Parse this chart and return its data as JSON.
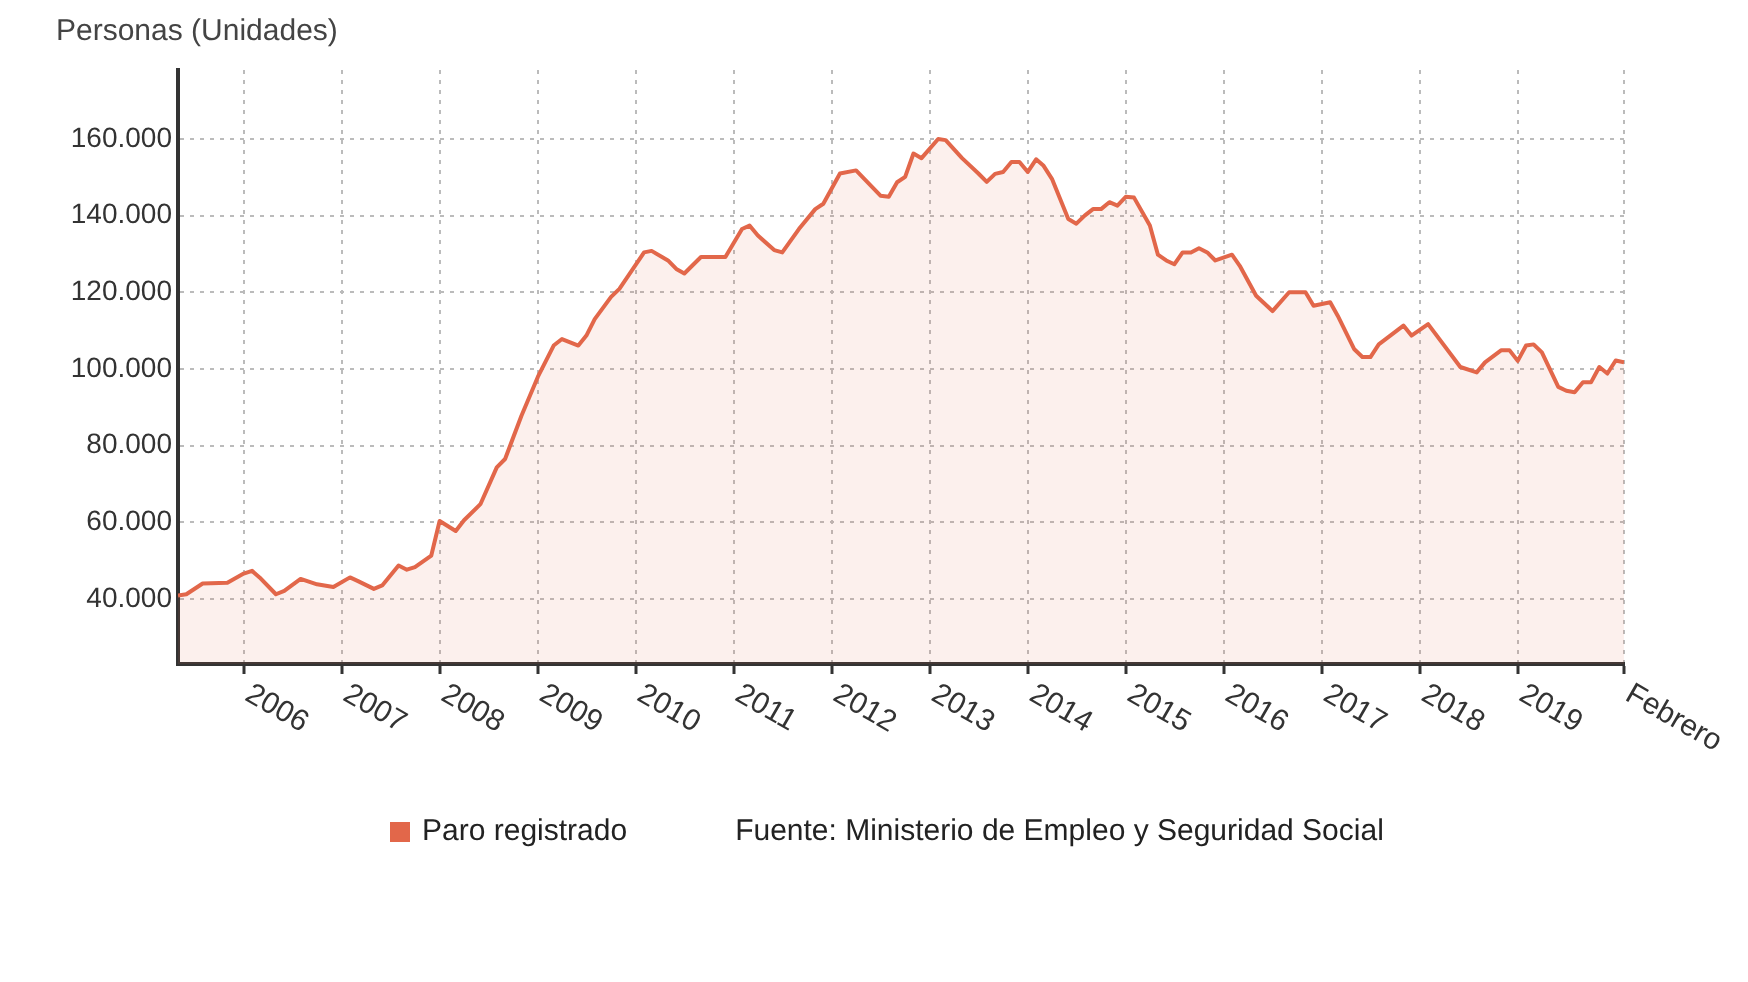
{
  "chart_data": {
    "type": "area",
    "ylabel": "Personas (Unidades)",
    "x": [
      "2005-05",
      "2005-06",
      "2005-08",
      "2005-11",
      "2006-01",
      "2006-02",
      "2006-03",
      "2006-05",
      "2006-06",
      "2006-08",
      "2006-10",
      "2006-12",
      "2007-02",
      "2007-03",
      "2007-05",
      "2007-06",
      "2007-08",
      "2007-09",
      "2007-10",
      "2007-12",
      "2008-01",
      "2008-03",
      "2008-04",
      "2008-06",
      "2008-08",
      "2008-09",
      "2008-11",
      "2009-01",
      "2009-03",
      "2009-04",
      "2009-06",
      "2009-07",
      "2009-08",
      "2009-10",
      "2009-11",
      "2010-02",
      "2010-03",
      "2010-05",
      "2010-06",
      "2010-07",
      "2010-09",
      "2010-12",
      "2011-02",
      "2011-03",
      "2011-04",
      "2011-06",
      "2011-07",
      "2011-09",
      "2011-11",
      "2011-12",
      "2012-02",
      "2012-04",
      "2012-07",
      "2012-08",
      "2012-09",
      "2012-10",
      "2012-11",
      "2012-12",
      "2013-02",
      "2013-03",
      "2013-05",
      "2013-07",
      "2013-08",
      "2013-09",
      "2013-10",
      "2013-11",
      "2013-12",
      "2014-01",
      "2014-02",
      "2014-03",
      "2014-04",
      "2014-06",
      "2014-07",
      "2014-08",
      "2014-09",
      "2014-10",
      "2014-11",
      "2014-12",
      "2015-01",
      "2015-02",
      "2015-04",
      "2015-05",
      "2015-06",
      "2015-07",
      "2015-08",
      "2015-09",
      "2015-10",
      "2015-11",
      "2015-12",
      "2016-02",
      "2016-03",
      "2016-05",
      "2016-07",
      "2016-09",
      "2016-11",
      "2016-12",
      "2017-02",
      "2017-03",
      "2017-05",
      "2017-06",
      "2017-07",
      "2017-08",
      "2017-11",
      "2017-12",
      "2018-02",
      "2018-06",
      "2018-08",
      "2018-09",
      "2018-11",
      "2018-12",
      "2019-01",
      "2019-02",
      "2019-03",
      "2019-04",
      "2019-06",
      "2019-07",
      "2019-08",
      "2019-09",
      "2019-10",
      "2019-11",
      "2019-12",
      "2020-01",
      "2020-02"
    ],
    "series": [
      {
        "name": "Paro registrado",
        "color": "#e2674a",
        "values": [
          40900,
          41200,
          44000,
          44200,
          46600,
          47300,
          45600,
          41200,
          42100,
          45200,
          43800,
          43100,
          45600,
          44700,
          42600,
          43500,
          48700,
          47600,
          48300,
          51300,
          60300,
          57700,
          60500,
          64700,
          74300,
          76500,
          87800,
          97900,
          106100,
          107800,
          106100,
          108700,
          113000,
          118800,
          120900,
          130400,
          130800,
          128300,
          126100,
          124900,
          129200,
          129200,
          136500,
          137400,
          134800,
          131000,
          130400,
          136500,
          141700,
          143100,
          151000,
          151800,
          145200,
          144900,
          148700,
          150100,
          156200,
          155000,
          160000,
          159700,
          155000,
          151000,
          148800,
          150900,
          151400,
          154000,
          154000,
          151400,
          154700,
          153000,
          149600,
          139100,
          137900,
          140000,
          141700,
          141700,
          143500,
          142600,
          144900,
          144700,
          137400,
          129800,
          128300,
          127300,
          130400,
          130400,
          131500,
          130400,
          128300,
          129800,
          126900,
          119100,
          115100,
          120000,
          120000,
          116500,
          117400,
          113900,
          105200,
          103100,
          103100,
          106400,
          111300,
          108700,
          111700,
          100500,
          99100,
          101700,
          104900,
          104900,
          102100,
          106100,
          106400,
          104300,
          95300,
          94300,
          93900,
          96500,
          96500,
          100500,
          98800,
          102200,
          101700
        ]
      }
    ],
    "xlim": [
      "2005-05",
      "2020-02"
    ],
    "xticks": [
      {
        "value": "2006-01",
        "label": "2006"
      },
      {
        "value": "2007-01",
        "label": "2007"
      },
      {
        "value": "2008-01",
        "label": "2008"
      },
      {
        "value": "2009-01",
        "label": "2009"
      },
      {
        "value": "2010-01",
        "label": "2010"
      },
      {
        "value": "2011-01",
        "label": "2011"
      },
      {
        "value": "2012-01",
        "label": "2012"
      },
      {
        "value": "2013-01",
        "label": "2013"
      },
      {
        "value": "2014-01",
        "label": "2014"
      },
      {
        "value": "2015-01",
        "label": "2015"
      },
      {
        "value": "2016-01",
        "label": "2016"
      },
      {
        "value": "2017-01",
        "label": "2017"
      },
      {
        "value": "2018-01",
        "label": "2018"
      },
      {
        "value": "2019-01",
        "label": "2019"
      },
      {
        "value": "2020-02",
        "label": "Febrero"
      }
    ],
    "ylim": [
      23000,
      178000
    ],
    "yticks": [
      {
        "value": 40000,
        "label": "40.000"
      },
      {
        "value": 60000,
        "label": "60.000"
      },
      {
        "value": 80000,
        "label": "80.000"
      },
      {
        "value": 100000,
        "label": "100.000"
      },
      {
        "value": 120000,
        "label": "120.000"
      },
      {
        "value": 140000,
        "label": "140.000"
      },
      {
        "value": 160000,
        "label": "160.000"
      }
    ],
    "grid": true,
    "legend": "bottom",
    "marker": "none",
    "line_style": "solid",
    "annotations": [
      "Fuente: Ministerio de Empleo y Seguridad Social"
    ]
  }
}
